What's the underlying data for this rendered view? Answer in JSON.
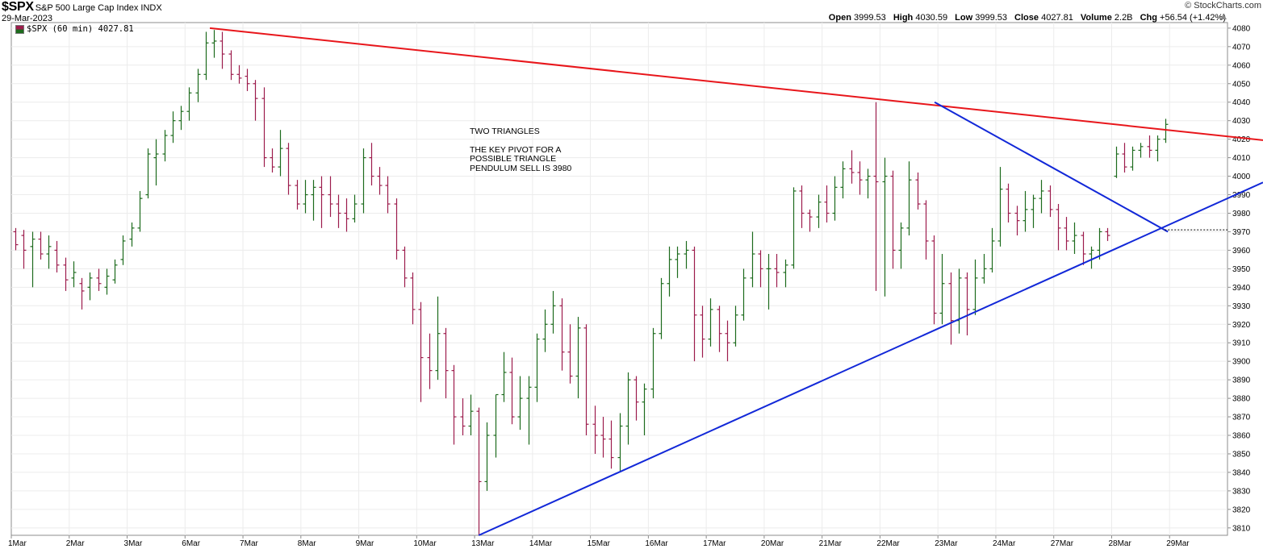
{
  "header": {
    "symbol": "$SPX",
    "description": "S&P 500 Large Cap Index",
    "exchange": "INDX",
    "date": "29-Mar-2023",
    "brand": "© StockCharts.com",
    "open_label": "Open",
    "open": "3999.53",
    "high_label": "High",
    "high": "4030.59",
    "low_label": "Low",
    "low": "3999.53",
    "close_label": "Close",
    "close": "4027.81",
    "volume_label": "Volume",
    "volume": "2.2B",
    "chg_label": "Chg",
    "chg": "+56.54 (+1.42%)"
  },
  "legend": {
    "text": "$SPX (60 min) 4027.81"
  },
  "annotation": {
    "title": "TWO TRIANGLES",
    "lines": [
      "THE KEY PIVOT FOR A",
      "POSSIBLE TRIANGLE",
      "PENDULUM SELL IS 3980"
    ]
  },
  "colors": {
    "up": "#1d6b1d",
    "down": "#9c1c4c",
    "red_line": "#e8161b",
    "blue_line": "#1228d8"
  },
  "chart_data": {
    "type": "ohlc",
    "interval": "60 min",
    "ylim": [
      3806,
      4083
    ],
    "yticks": [
      3810,
      3820,
      3830,
      3840,
      3850,
      3860,
      3870,
      3880,
      3890,
      3900,
      3910,
      3920,
      3930,
      3940,
      3950,
      3960,
      3970,
      3980,
      3990,
      4000,
      4010,
      4020,
      4030,
      4040,
      4050,
      4060,
      4070,
      4080
    ],
    "xticks": [
      "1Mar",
      "2Mar",
      "3Mar",
      "6Mar",
      "7Mar",
      "8Mar",
      "9Mar",
      "10Mar",
      "13Mar",
      "14Mar",
      "15Mar",
      "16Mar",
      "17Mar",
      "20Mar",
      "21Mar",
      "22Mar",
      "23Mar",
      "24Mar",
      "27Mar",
      "28Mar",
      "29Mar"
    ],
    "bars_per_day": 7,
    "bars": [
      [
        3970,
        3972,
        3960,
        3963
      ],
      [
        3968,
        3971,
        3950,
        3960
      ],
      [
        3962,
        3970,
        3940,
        3966
      ],
      [
        3966,
        3970,
        3955,
        3958
      ],
      [
        3958,
        3968,
        3950,
        3962
      ],
      [
        3960,
        3965,
        3948,
        3952
      ],
      [
        3952,
        3956,
        3938,
        3944
      ],
      [
        3945,
        3954,
        3940,
        3948
      ],
      [
        3942,
        3945,
        3928,
        3938
      ],
      [
        3940,
        3948,
        3933,
        3945
      ],
      [
        3945,
        3950,
        3938,
        3942
      ],
      [
        3940,
        3950,
        3936,
        3946
      ],
      [
        3944,
        3955,
        3942,
        3952
      ],
      [
        3955,
        3968,
        3952,
        3965
      ],
      [
        3966,
        3975,
        3962,
        3972
      ],
      [
        3972,
        3992,
        3970,
        3988
      ],
      [
        3990,
        4015,
        3988,
        4012
      ],
      [
        4010,
        4020,
        3995,
        4012
      ],
      [
        4012,
        4025,
        4008,
        4022
      ],
      [
        4022,
        4035,
        4018,
        4030
      ],
      [
        4030,
        4038,
        4025,
        4035
      ],
      [
        4035,
        4048,
        4030,
        4045
      ],
      [
        4045,
        4058,
        4040,
        4055
      ],
      [
        4055,
        4078,
        4052,
        4072
      ],
      [
        4072,
        4079,
        4064,
        4073
      ],
      [
        4073,
        4078,
        4058,
        4066
      ],
      [
        4066,
        4068,
        4052,
        4055
      ],
      [
        4055,
        4060,
        4050,
        4053
      ],
      [
        4054,
        4058,
        4046,
        4050
      ],
      [
        4050,
        4052,
        4030,
        4042
      ],
      [
        4042,
        4048,
        4005,
        4010
      ],
      [
        4010,
        4015,
        4002,
        4005
      ],
      [
        4005,
        4025,
        4000,
        4015
      ],
      [
        4015,
        4018,
        3990,
        3995
      ],
      [
        3995,
        3998,
        3982,
        3985
      ],
      [
        3985,
        3998,
        3980,
        3990
      ],
      [
        3990,
        3998,
        3976,
        3994
      ],
      [
        3994,
        4000,
        3972,
        3990
      ],
      [
        3990,
        4000,
        3978,
        3985
      ],
      [
        3985,
        3990,
        3972,
        3980
      ],
      [
        3980,
        3988,
        3970,
        3977
      ],
      [
        3977,
        3990,
        3975,
        3985
      ],
      [
        3985,
        4015,
        3980,
        4010
      ],
      [
        4010,
        4018,
        3995,
        4000
      ],
      [
        4000,
        4005,
        3990,
        3995
      ],
      [
        3995,
        4000,
        3980,
        3985
      ],
      [
        3985,
        3988,
        3955,
        3960
      ],
      [
        3960,
        3962,
        3940,
        3945
      ],
      [
        3945,
        3948,
        3920,
        3928
      ],
      [
        3928,
        3932,
        3878,
        3902
      ],
      [
        3902,
        3915,
        3885,
        3895
      ],
      [
        3895,
        3935,
        3890,
        3915
      ],
      [
        3915,
        3918,
        3880,
        3895
      ],
      [
        3895,
        3898,
        3855,
        3870
      ],
      [
        3870,
        3880,
        3860,
        3865
      ],
      [
        3865,
        3882,
        3860,
        3873
      ],
      [
        3873,
        3875,
        3806,
        3835
      ],
      [
        3835,
        3867,
        3830,
        3860
      ],
      [
        3860,
        3882,
        3848,
        3882
      ],
      [
        3882,
        3905,
        3878,
        3894
      ],
      [
        3894,
        3902,
        3866,
        3870
      ],
      [
        3870,
        3892,
        3863,
        3880
      ],
      [
        3880,
        3892,
        3855,
        3886
      ],
      [
        3886,
        3915,
        3878,
        3912
      ],
      [
        3912,
        3928,
        3905,
        3920
      ],
      [
        3920,
        3938,
        3915,
        3930
      ],
      [
        3930,
        3934,
        3895,
        3905
      ],
      [
        3905,
        3920,
        3888,
        3892
      ],
      [
        3892,
        3924,
        3880,
        3918
      ],
      [
        3918,
        3920,
        3860,
        3866
      ],
      [
        3866,
        3876,
        3850,
        3860
      ],
      [
        3860,
        3870,
        3848,
        3858
      ],
      [
        3858,
        3868,
        3842,
        3848
      ],
      [
        3848,
        3872,
        3840,
        3865
      ],
      [
        3865,
        3894,
        3855,
        3890
      ],
      [
        3890,
        3892,
        3868,
        3878
      ],
      [
        3878,
        3888,
        3860,
        3885
      ],
      [
        3885,
        3918,
        3880,
        3915
      ],
      [
        3915,
        3945,
        3912,
        3942
      ],
      [
        3942,
        3962,
        3935,
        3955
      ],
      [
        3955,
        3962,
        3945,
        3958
      ],
      [
        3958,
        3965,
        3950,
        3960
      ],
      [
        3960,
        3962,
        3900,
        3925
      ],
      [
        3925,
        3930,
        3902,
        3912
      ],
      [
        3912,
        3934,
        3908,
        3928
      ],
      [
        3928,
        3930,
        3905,
        3915
      ],
      [
        3915,
        3922,
        3900,
        3910
      ],
      [
        3910,
        3930,
        3908,
        3925
      ],
      [
        3925,
        3950,
        3922,
        3945
      ],
      [
        3945,
        3970,
        3940,
        3958
      ],
      [
        3958,
        3960,
        3940,
        3950
      ],
      [
        3950,
        3958,
        3928,
        3950
      ],
      [
        3950,
        3958,
        3940,
        3948
      ],
      [
        3948,
        3955,
        3940,
        3952
      ],
      [
        3952,
        3994,
        3950,
        3992
      ],
      [
        3992,
        3995,
        3972,
        3980
      ],
      [
        3980,
        3982,
        3970,
        3978
      ],
      [
        3978,
        3990,
        3972,
        3986
      ],
      [
        3986,
        3995,
        3975,
        3980
      ],
      [
        3980,
        4000,
        3976,
        3994
      ],
      [
        3994,
        4008,
        3988,
        4004
      ],
      [
        4004,
        4014,
        3996,
        4002
      ],
      [
        4002,
        4008,
        3990,
        3998
      ],
      [
        3998,
        4004,
        3988,
        4000
      ],
      [
        4000,
        4040,
        3938,
        3997
      ],
      [
        3997,
        4010,
        3935,
        4000
      ],
      [
        4000,
        4003,
        3950,
        3960
      ],
      [
        3960,
        3975,
        3950,
        3972
      ],
      [
        3972,
        4008,
        3968,
        3998
      ],
      [
        3998,
        4002,
        3982,
        3985
      ],
      [
        3985,
        3987,
        3955,
        3965
      ],
      [
        3965,
        3968,
        3920,
        3926
      ],
      [
        3926,
        3958,
        3920,
        3942
      ],
      [
        3942,
        3948,
        3909,
        3922
      ],
      [
        3922,
        3950,
        3915,
        3945
      ],
      [
        3945,
        3948,
        3914,
        3928
      ],
      [
        3928,
        3955,
        3925,
        3945
      ],
      [
        3945,
        3958,
        3942,
        3950
      ],
      [
        3950,
        3972,
        3948,
        3965
      ],
      [
        3965,
        4005,
        3962,
        3993
      ],
      [
        3993,
        3996,
        3975,
        3980
      ],
      [
        3980,
        3984,
        3968,
        3976
      ],
      [
        3976,
        3992,
        3970,
        3982
      ],
      [
        3982,
        3990,
        3972,
        3988
      ],
      [
        3988,
        3998,
        3980,
        3992
      ],
      [
        3992,
        3995,
        3978,
        3982
      ],
      [
        3982,
        3985,
        3960,
        3972
      ],
      [
        3972,
        3978,
        3960,
        3965
      ],
      [
        3965,
        3975,
        3958,
        3968
      ],
      [
        3968,
        3970,
        3952,
        3958
      ],
      [
        3958,
        3962,
        3950,
        3960
      ],
      [
        3960,
        3972,
        3955,
        3970
      ],
      [
        3970,
        3972,
        3965,
        3968
      ],
      [
        4000,
        4016,
        3999,
        4012
      ],
      [
        4012,
        4018,
        4002,
        4005
      ],
      [
        4005,
        4016,
        4003,
        4014
      ],
      [
        4014,
        4018,
        4010,
        4016
      ],
      [
        4016,
        4022,
        4010,
        4014
      ],
      [
        4014,
        4022,
        4008,
        4020
      ],
      [
        4020,
        4031,
        4018,
        4028
      ]
    ],
    "trendlines": [
      {
        "name": "resistance",
        "color": "red",
        "points": [
          [
            "6Mar",
            4080
          ],
          [
            "29Mar",
            4022
          ]
        ]
      },
      {
        "name": "falling",
        "color": "blue",
        "points": [
          [
            "22Mar",
            4040
          ],
          [
            "28Mar",
            3970
          ]
        ]
      },
      {
        "name": "rising",
        "color": "blue",
        "points": [
          [
            "13Mar",
            3806
          ],
          [
            "29Mar",
            3986
          ]
        ]
      }
    ],
    "horizontal_levels": [
      {
        "style": "dotted",
        "value": 3971
      }
    ]
  }
}
